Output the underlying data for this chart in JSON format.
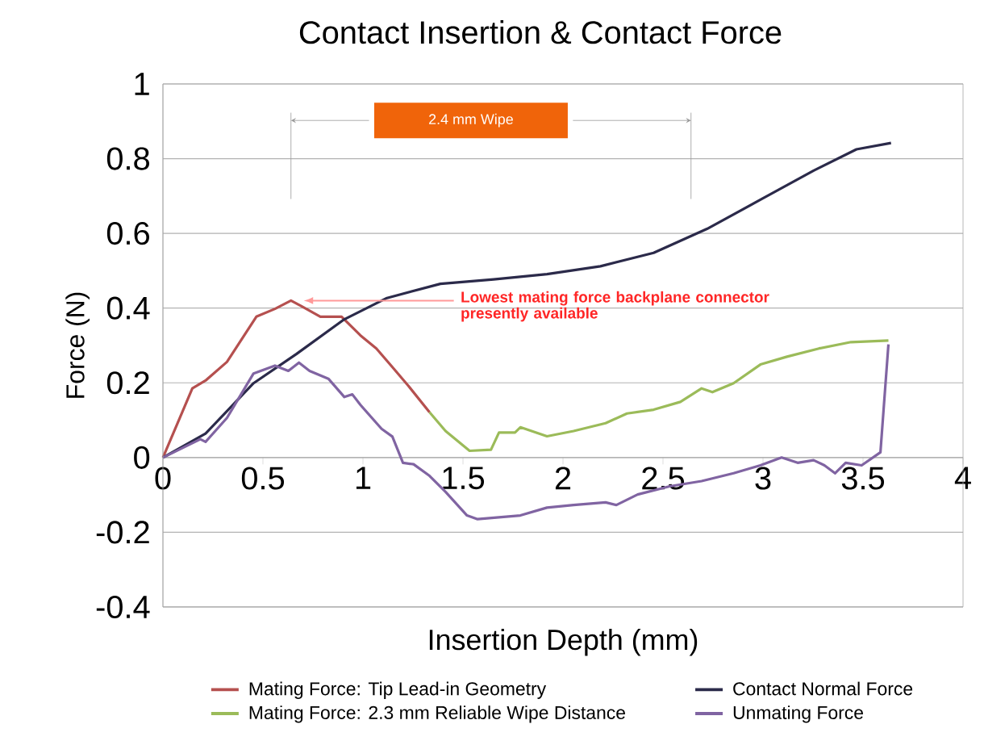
{
  "chart_data": {
    "type": "line",
    "title": "Contact Insertion & Contact Force",
    "xlabel": "Insertion Depth (mm)",
    "ylabel": "Force (N)",
    "xlim": [
      0,
      4
    ],
    "ylim": [
      -0.4,
      1
    ],
    "xticks": [
      0,
      0.5,
      1,
      1.5,
      2,
      2.5,
      3,
      3.5,
      4
    ],
    "yticks": [
      -0.4,
      -0.2,
      0,
      0.2,
      0.4,
      0.6,
      0.8,
      1
    ],
    "grid": "y",
    "legend": "bottom",
    "marker": "none",
    "line_style": "solid",
    "annotations": [
      "2.4 mm Wipe",
      {
        "text": "Lowest mating force backplane connector presently available",
        "x": 0.68,
        "y": 0.42
      }
    ],
    "series": [
      {
        "name": "Mating Force: Tip Lead-in Geometry",
        "color": "#b5504f",
        "x": [
          0,
          0.147,
          0.213,
          0.32,
          0.467,
          0.56,
          0.64,
          0.693,
          0.787,
          0.893,
          0.987,
          1.067,
          1.147,
          1.227,
          1.333
        ],
        "values": [
          0,
          0.185,
          0.206,
          0.256,
          0.377,
          0.398,
          0.42,
          0.405,
          0.377,
          0.377,
          0.327,
          0.292,
          0.242,
          0.192,
          0.121
        ]
      },
      {
        "name": "Contact Normal Force",
        "color": "#2b2a4a",
        "x": [
          0,
          0.213,
          0.453,
          0.667,
          0.907,
          1.12,
          1.387,
          1.653,
          1.92,
          2.187,
          2.453,
          2.72,
          2.987,
          3.253,
          3.467,
          3.64
        ],
        "values": [
          0,
          0.064,
          0.199,
          0.277,
          0.37,
          0.427,
          0.465,
          0.477,
          0.491,
          0.512,
          0.548,
          0.612,
          0.69,
          0.768,
          0.825,
          0.842
        ]
      },
      {
        "name": "Mating Force: 2.3 mm Reliable Wipe Distance",
        "color": "#9bbb59",
        "x": [
          1.333,
          1.413,
          1.533,
          1.64,
          1.68,
          1.76,
          1.787,
          1.92,
          2.053,
          2.213,
          2.32,
          2.453,
          2.587,
          2.693,
          2.747,
          2.853,
          2.987,
          3.12,
          3.28,
          3.44,
          3.627
        ],
        "values": [
          0.121,
          0.071,
          0.018,
          0.021,
          0.067,
          0.067,
          0.081,
          0.057,
          0.071,
          0.092,
          0.118,
          0.128,
          0.149,
          0.185,
          0.175,
          0.199,
          0.249,
          0.27,
          0.292,
          0.309,
          0.313
        ]
      },
      {
        "name": "Unmating Force",
        "color": "#8064a2",
        "x": [
          0,
          0.187,
          0.213,
          0.32,
          0.453,
          0.56,
          0.627,
          0.68,
          0.733,
          0.827,
          0.907,
          0.947,
          0.987,
          1.093,
          1.147,
          1.2,
          1.253,
          1.333,
          1.413,
          1.52,
          1.573,
          1.787,
          1.92,
          2.053,
          2.213,
          2.267,
          2.373,
          2.533,
          2.693,
          2.853,
          2.987,
          3.093,
          3.173,
          3.253,
          3.307,
          3.36,
          3.413,
          3.493,
          3.587,
          3.627
        ],
        "values": [
          0,
          0.049,
          0.042,
          0.106,
          0.225,
          0.246,
          0.232,
          0.254,
          0.232,
          0.211,
          0.162,
          0.169,
          0.141,
          0.077,
          0.056,
          -0.014,
          -0.018,
          -0.049,
          -0.092,
          -0.155,
          -0.165,
          -0.155,
          -0.134,
          -0.127,
          -0.12,
          -0.127,
          -0.099,
          -0.077,
          -0.063,
          -0.042,
          -0.021,
          0,
          -0.014,
          -0.007,
          -0.021,
          -0.042,
          -0.014,
          -0.021,
          0.014,
          0.303
        ]
      }
    ]
  }
}
